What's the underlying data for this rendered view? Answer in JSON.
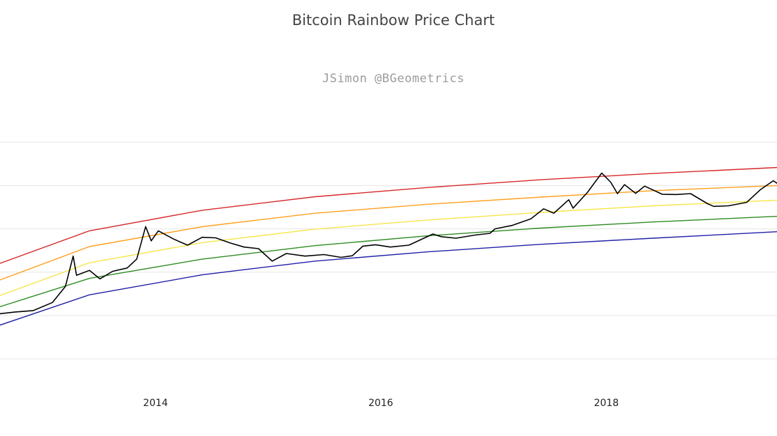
{
  "chart_data": {
    "type": "line",
    "title": "Bitcoin Rainbow Price Chart",
    "subtitle": "JSimon @BGeometrics",
    "xlabel": "",
    "ylabel": "",
    "y_scale": "log",
    "grid": "horizontal",
    "legend": "none",
    "x_range": [
      "2012-08-15",
      "2019-07-08"
    ],
    "y_range": [
      1,
      1000000
    ],
    "x_ticks": [
      "2014",
      "2016",
      "2018"
    ],
    "series": [
      {
        "color": "#d62728",
        "x": [
          "2012-08-15",
          "2013-06-01",
          "2014-06-01",
          "2015-06-01",
          "2016-06-01",
          "2017-06-01",
          "2018-06-01",
          "2019-07-08"
        ],
        "y": [
          160,
          900,
          2690,
          5500,
          9000,
          13600,
          19000,
          26100
        ]
      },
      {
        "color": "#ff9f1a",
        "x": [
          "2012-08-15",
          "2013-06-01",
          "2014-06-01",
          "2015-06-01",
          "2016-06-01",
          "2017-06-01",
          "2018-06-01",
          "2019-07-08"
        ],
        "y": [
          66,
          390,
          1120,
          2290,
          3700,
          5400,
          7600,
          10000
        ]
      },
      {
        "color": "#f5e64a",
        "x": [
          "2012-08-15",
          "2013-06-01",
          "2014-06-01",
          "2015-06-01",
          "2016-06-01",
          "2017-06-01",
          "2018-06-01",
          "2019-07-08"
        ],
        "y": [
          29,
          165,
          480,
          980,
          1600,
          2400,
          3400,
          4600
        ]
      },
      {
        "color": "#2e8b22",
        "x": [
          "2012-08-15",
          "2013-06-01",
          "2014-06-01",
          "2015-06-01",
          "2016-06-01",
          "2017-06-01",
          "2018-06-01",
          "2019-07-08"
        ],
        "y": [
          16,
          72,
          200,
          410,
          690,
          1040,
          1440,
          1950
        ]
      },
      {
        "color": "#1f1fa8",
        "x": [
          "2012-08-15",
          "2013-06-01",
          "2014-06-01",
          "2015-06-01",
          "2016-06-01",
          "2017-06-01",
          "2018-06-01",
          "2019-07-08"
        ],
        "y": [
          6,
          30,
          87,
          180,
          295,
          440,
          610,
          860
        ]
      },
      {
        "color": "#000000",
        "x": [
          "2012-08-15",
          "2012-10-01",
          "2012-12-01",
          "2013-02-01",
          "2013-03-15",
          "2013-04-09",
          "2013-04-20",
          "2013-06-01",
          "2013-07-05",
          "2013-08-15",
          "2013-10-01",
          "2013-11-01",
          "2013-11-30",
          "2013-12-18",
          "2014-01-10",
          "2014-03-01",
          "2014-04-15",
          "2014-06-01",
          "2014-07-15",
          "2014-09-01",
          "2014-10-15",
          "2014-12-01",
          "2015-01-14",
          "2015-03-01",
          "2015-05-01",
          "2015-07-01",
          "2015-08-25",
          "2015-10-01",
          "2015-11-04",
          "2015-12-15",
          "2016-02-01",
          "2016-04-01",
          "2016-06-18",
          "2016-07-15",
          "2016-09-01",
          "2016-11-01",
          "2016-12-20",
          "2017-01-05",
          "2017-03-01",
          "2017-05-01",
          "2017-06-12",
          "2017-07-15",
          "2017-09-01",
          "2017-09-15",
          "2017-11-01",
          "2017-12-17",
          "2018-01-15",
          "2018-02-06",
          "2018-03-01",
          "2018-04-06",
          "2018-05-05",
          "2018-07-01",
          "2018-08-15",
          "2018-10-01",
          "2018-11-25",
          "2018-12-15",
          "2019-02-01",
          "2019-04-01",
          "2019-05-15",
          "2019-06-26",
          "2019-07-08"
        ],
        "y": [
          11,
          12,
          13,
          20,
          47,
          235,
          85,
          110,
          70,
          105,
          125,
          200,
          1130,
          530,
          900,
          580,
          420,
          640,
          620,
          470,
          380,
          350,
          180,
          270,
          235,
          255,
          220,
          240,
          400,
          430,
          380,
          420,
          760,
          660,
          610,
          720,
          790,
          1000,
          1200,
          1700,
          2900,
          2300,
          4700,
          3000,
          7000,
          19400,
          12000,
          6500,
          10500,
          6600,
          9700,
          6300,
          6200,
          6500,
          3800,
          3300,
          3400,
          4100,
          8000,
          12900,
          11300
        ]
      }
    ]
  }
}
